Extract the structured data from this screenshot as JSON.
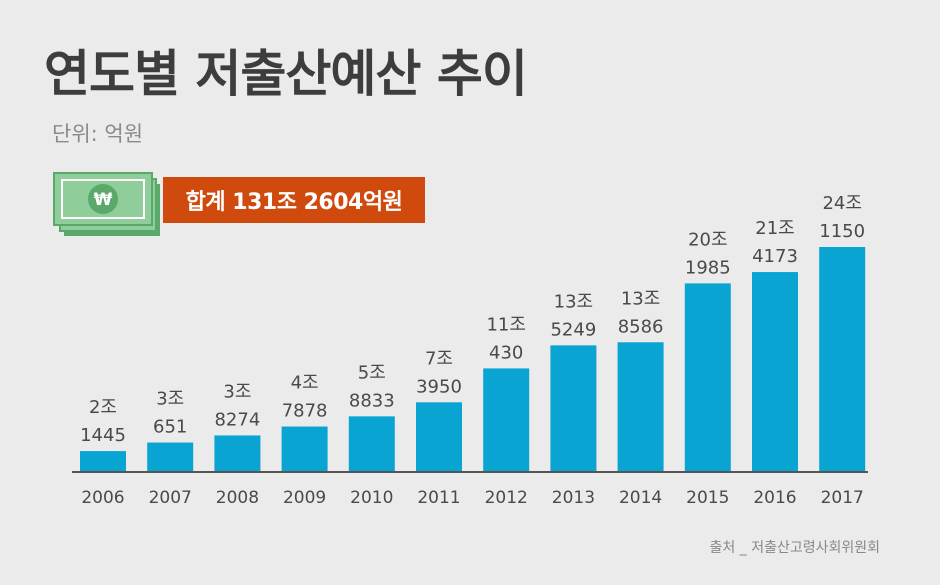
{
  "title": "연도별 저출산예산 추이",
  "unit_label": "단위: 억원",
  "total_label": "합계  131조 2604억원",
  "currency_symbol": "₩",
  "source": "출처 _ 저출산고령사회위원회",
  "colors": {
    "bar": "#0aa4d2",
    "badge": "#d04a0e",
    "money_green": "#8fce9b",
    "money_dark": "#5aa86a",
    "label_text": "#4a4a4a",
    "axis": "#555555"
  },
  "chart_data": {
    "type": "bar",
    "title": "연도별 저출산예산 추이",
    "xlabel": "",
    "ylabel": "",
    "unit": "억원",
    "categories": [
      "2006",
      "2007",
      "2008",
      "2009",
      "2010",
      "2011",
      "2012",
      "2013",
      "2014",
      "2015",
      "2016",
      "2017"
    ],
    "values": [
      21445,
      30651,
      38274,
      47878,
      58833,
      73950,
      110430,
      135249,
      138586,
      201985,
      214173,
      241150
    ],
    "value_labels": [
      [
        "2조",
        "1445"
      ],
      [
        "3조",
        "651"
      ],
      [
        "3조",
        "8274"
      ],
      [
        "4조",
        "7878"
      ],
      [
        "5조",
        "8833"
      ],
      [
        "7조",
        "3950"
      ],
      [
        "11조",
        "430"
      ],
      [
        "13조",
        "5249"
      ],
      [
        "13조",
        "8586"
      ],
      [
        "20조",
        "1985"
      ],
      [
        "21조",
        "4173"
      ],
      [
        "24조",
        "1150"
      ]
    ],
    "ylim": [
      0,
      241150
    ],
    "grid": false,
    "legend": "none"
  }
}
